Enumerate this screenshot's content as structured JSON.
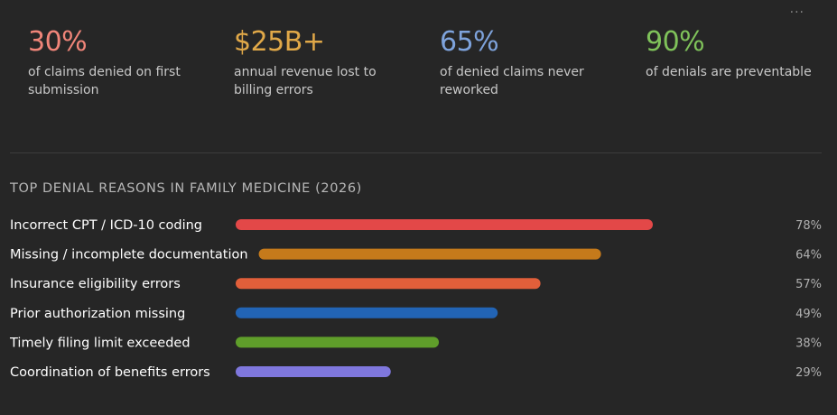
{
  "menu": {
    "label": "···"
  },
  "stats": [
    {
      "value": "30%",
      "text": "of claims denied on first submission",
      "color": "#f08579"
    },
    {
      "value": "$25B+",
      "text": "annual revenue lost to billing errors",
      "color": "#e0a848"
    },
    {
      "value": "65%",
      "text": "of denied claims never reworked",
      "color": "#7ea3dc"
    },
    {
      "value": "90%",
      "text": "of denials are preventable",
      "color": "#7fc25a"
    }
  ],
  "section": {
    "title": "TOP DENIAL REASONS IN FAMILY MEDICINE (2026)"
  },
  "chart_data": {
    "type": "bar",
    "orientation": "horizontal",
    "title": "TOP DENIAL REASONS IN FAMILY MEDICINE (2026)",
    "xlabel": "",
    "ylabel": "",
    "xlim": [
      0,
      100
    ],
    "grid": false,
    "categories": [
      "Incorrect CPT / ICD-10 coding",
      "Missing / incomplete documentation",
      "Insurance eligibility errors",
      "Prior authorization missing",
      "Timely filing limit exceeded",
      "Coordination of benefits errors"
    ],
    "values": [
      78,
      64,
      57,
      49,
      38,
      29
    ],
    "value_labels": [
      "78%",
      "64%",
      "57%",
      "49%",
      "38%",
      "29%"
    ],
    "colors": [
      "#e34848",
      "#c57a1b",
      "#e15f3a",
      "#2264b5",
      "#5f9e2a",
      "#7f77dd"
    ]
  }
}
